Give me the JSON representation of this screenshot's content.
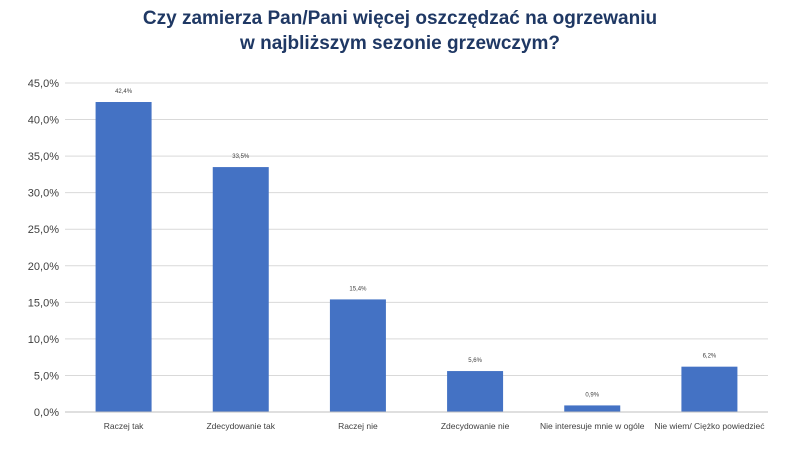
{
  "chart_data": {
    "type": "bar",
    "title_lines": [
      "Czy zamierza Pan/Pani więcej oszczędzać na ogrzewaniu",
      "w najbliższym sezonie grzewczym?"
    ],
    "categories": [
      "Raczej tak",
      "Zdecydowanie tak",
      "Raczej nie",
      "Zdecydowanie nie",
      "Nie interesuje mnie w ogóle",
      "Nie wiem/ Ciężko powiedzieć"
    ],
    "values": [
      42.4,
      33.5,
      15.4,
      5.6,
      0.9,
      6.2
    ],
    "data_labels": [
      "42,4%",
      "33,5%",
      "15,4%",
      "5,6%",
      "0,9%",
      "6,2%"
    ],
    "y_ticks": [
      0,
      5,
      10,
      15,
      20,
      25,
      30,
      35,
      40,
      45
    ],
    "y_tick_labels": [
      "0,0%",
      "5,0%",
      "10,0%",
      "15,0%",
      "20,0%",
      "25,0%",
      "30,0%",
      "35,0%",
      "40,0%",
      "45,0%"
    ],
    "ylim": [
      0,
      45
    ],
    "grid": true,
    "legend": "none",
    "bar_color": "#4472c4",
    "grid_color": "#d9d9d9",
    "title_color": "#1f3864"
  }
}
